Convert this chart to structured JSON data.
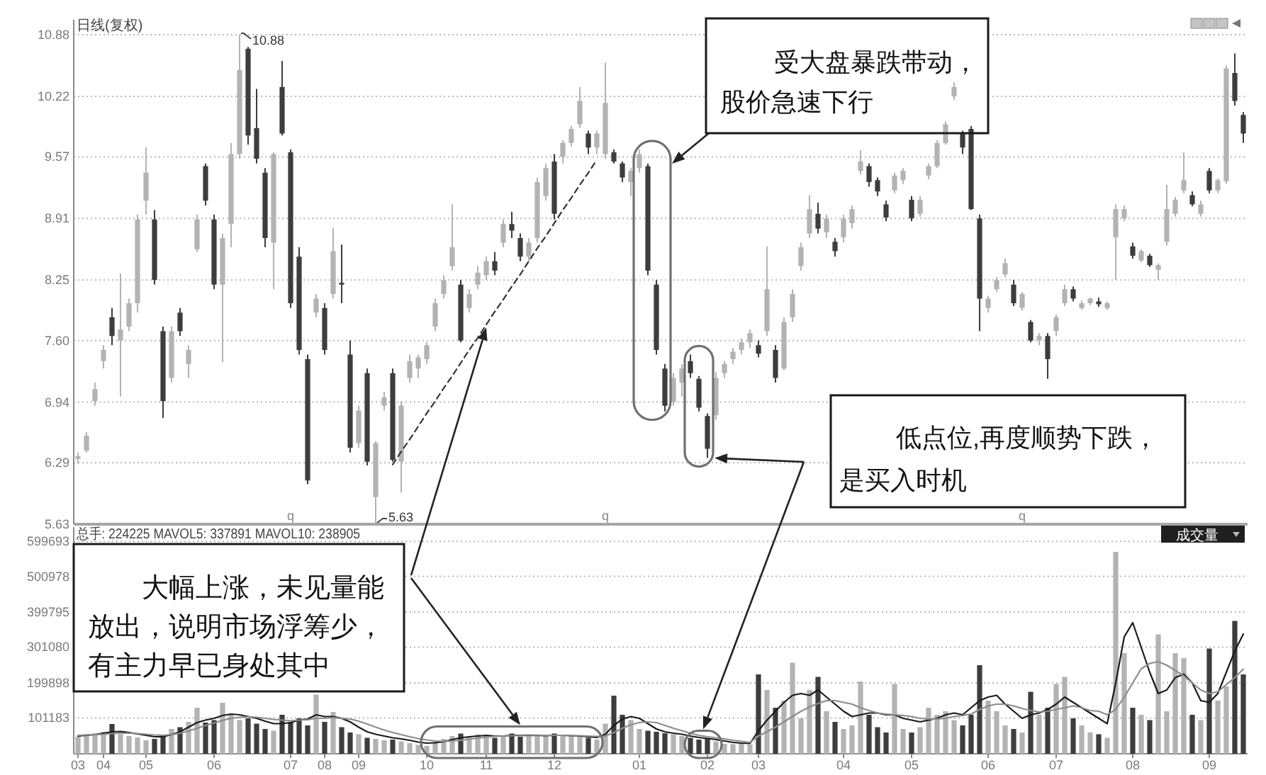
{
  "chart_data": [
    {
      "type": "candlestick",
      "title": "日线(复权)",
      "categories": [
        "03",
        null,
        null,
        "04",
        null,
        null,
        null,
        null,
        "05",
        null,
        null,
        null,
        null,
        null,
        null,
        null,
        "06",
        null,
        null,
        null,
        null,
        null,
        null,
        null,
        null,
        "07",
        null,
        null,
        null,
        "08",
        null,
        null,
        null,
        "09",
        null,
        null,
        null,
        null,
        null,
        null,
        null,
        "10",
        null,
        null,
        null,
        null,
        null,
        null,
        "11",
        null,
        null,
        null,
        null,
        null,
        null,
        null,
        "12",
        null,
        null,
        null,
        null,
        null,
        null,
        null,
        null,
        null,
        "01",
        null,
        null,
        null,
        null,
        null,
        null,
        null,
        "02",
        null,
        null,
        null,
        null,
        null,
        "03",
        null,
        null,
        null,
        null,
        null,
        null,
        null,
        null,
        null,
        "04",
        null,
        null,
        null,
        null,
        null,
        null,
        null,
        "05",
        null,
        null,
        null,
        null,
        null,
        null,
        null,
        null,
        "06",
        null,
        null,
        null,
        null,
        null,
        null,
        null,
        "07",
        null,
        null,
        null,
        null,
        null,
        null,
        null,
        null,
        "08",
        null,
        null,
        null,
        null,
        null,
        null,
        null,
        null,
        "09",
        null,
        null,
        null,
        null
      ],
      "ohlc": [
        [
          6.33,
          6.4,
          6.28,
          6.36
        ],
        [
          6.42,
          6.62,
          6.4,
          6.58
        ],
        [
          6.95,
          7.15,
          6.9,
          7.08
        ],
        [
          7.38,
          7.55,
          7.3,
          7.5
        ],
        [
          7.85,
          7.95,
          7.55,
          7.65
        ],
        [
          7.6,
          8.32,
          7.0,
          7.72
        ],
        [
          7.75,
          8.05,
          7.7,
          8.0
        ],
        [
          8.0,
          8.95,
          7.9,
          8.9
        ],
        [
          9.1,
          9.67,
          8.95,
          9.4
        ],
        [
          8.9,
          9.0,
          8.2,
          8.25
        ],
        [
          7.7,
          7.75,
          6.77,
          6.95
        ],
        [
          7.2,
          7.75,
          7.15,
          7.7
        ],
        [
          7.9,
          7.95,
          7.65,
          7.7
        ],
        [
          7.35,
          7.55,
          7.2,
          7.5
        ],
        [
          8.58,
          8.95,
          8.55,
          8.9
        ],
        [
          9.47,
          9.5,
          9.05,
          9.1
        ],
        [
          8.9,
          8.95,
          8.15,
          8.2
        ],
        [
          8.2,
          8.75,
          7.37,
          8.7
        ],
        [
          8.85,
          9.72,
          8.6,
          9.6
        ],
        [
          9.6,
          10.88,
          9.55,
          10.5
        ],
        [
          10.73,
          10.75,
          9.7,
          9.8
        ],
        [
          9.88,
          10.3,
          9.5,
          9.55
        ],
        [
          9.4,
          9.45,
          8.6,
          8.7
        ],
        [
          8.65,
          9.62,
          8.15,
          9.6
        ],
        [
          10.32,
          10.6,
          9.8,
          9.82
        ],
        [
          9.62,
          9.65,
          7.95,
          8.0
        ],
        [
          8.5,
          8.6,
          7.45,
          7.5
        ],
        [
          7.4,
          7.45,
          6.06,
          6.1
        ],
        [
          7.9,
          8.1,
          7.85,
          8.05
        ],
        [
          7.95,
          8.0,
          7.45,
          7.5
        ],
        [
          8.1,
          8.81,
          8.05,
          8.56
        ],
        [
          8.22,
          8.63,
          8.0,
          8.2
        ],
        [
          7.45,
          7.6,
          6.4,
          6.45
        ],
        [
          6.5,
          6.9,
          6.45,
          6.85
        ],
        [
          7.25,
          7.3,
          6.26,
          6.3
        ],
        [
          5.92,
          6.52,
          5.63,
          6.5
        ],
        [
          6.9,
          7.05,
          6.85,
          6.99
        ],
        [
          7.25,
          7.3,
          6.3,
          6.32
        ],
        [
          6.3,
          6.95,
          5.97,
          6.9
        ],
        [
          7.2,
          7.45,
          7.15,
          7.38
        ],
        [
          7.3,
          7.45,
          7.2,
          7.42
        ],
        [
          7.4,
          7.58,
          7.35,
          7.55
        ],
        [
          7.75,
          8.05,
          7.7,
          8.0
        ],
        [
          8.1,
          8.3,
          8.05,
          8.25
        ],
        [
          8.4,
          9.06,
          8.35,
          8.6
        ],
        [
          8.2,
          8.25,
          7.58,
          7.6
        ],
        [
          7.95,
          8.15,
          7.9,
          8.1
        ],
        [
          8.2,
          8.4,
          8.15,
          8.33
        ],
        [
          8.3,
          8.5,
          8.25,
          8.45
        ],
        [
          8.45,
          8.55,
          8.3,
          8.35
        ],
        [
          8.65,
          8.9,
          8.6,
          8.85
        ],
        [
          8.85,
          8.98,
          8.7,
          8.78
        ],
        [
          8.7,
          8.75,
          8.45,
          8.5
        ],
        [
          8.5,
          8.7,
          8.45,
          8.65
        ],
        [
          8.7,
          9.35,
          8.65,
          9.3
        ],
        [
          9.15,
          9.5,
          9.1,
          9.45
        ],
        [
          9.52,
          9.6,
          8.9,
          8.96
        ],
        [
          9.57,
          9.75,
          9.5,
          9.72
        ],
        [
          9.72,
          9.9,
          9.68,
          9.87
        ],
        [
          9.92,
          10.32,
          9.88,
          10.17
        ],
        [
          9.82,
          9.85,
          9.6,
          9.67
        ],
        [
          9.67,
          9.85,
          9.6,
          9.82
        ],
        [
          9.6,
          10.58,
          9.55,
          10.15
        ],
        [
          9.62,
          9.65,
          9.5,
          9.52
        ],
        [
          9.5,
          9.52,
          9.3,
          9.35
        ],
        [
          9.3,
          9.45,
          9.15,
          9.42
        ],
        [
          9.45,
          9.65,
          9.4,
          9.6
        ],
        [
          9.47,
          9.5,
          8.3,
          8.35
        ],
        [
          8.2,
          8.25,
          7.45,
          7.5
        ],
        [
          7.3,
          7.35,
          6.84,
          6.9
        ],
        [
          6.94,
          7.25,
          6.9,
          7.2
        ],
        [
          7.15,
          7.35,
          7.0,
          7.3
        ],
        [
          7.38,
          7.45,
          7.2,
          7.25
        ],
        [
          7.19,
          7.22,
          6.84,
          6.88
        ],
        [
          6.79,
          6.82,
          6.34,
          6.44
        ],
        [
          6.8,
          7.26,
          6.75,
          7.2
        ],
        [
          7.25,
          7.38,
          7.2,
          7.35
        ],
        [
          7.4,
          7.52,
          7.35,
          7.48
        ],
        [
          7.5,
          7.62,
          7.45,
          7.58
        ],
        [
          7.58,
          7.72,
          7.52,
          7.68
        ],
        [
          7.55,
          7.6,
          7.42,
          7.46
        ],
        [
          7.7,
          8.61,
          7.65,
          8.15
        ],
        [
          7.5,
          7.55,
          7.15,
          7.2
        ],
        [
          7.3,
          7.85,
          7.28,
          7.8
        ],
        [
          7.85,
          8.15,
          7.8,
          8.1
        ],
        [
          8.4,
          8.65,
          8.35,
          8.6
        ],
        [
          8.75,
          9.16,
          8.7,
          9.01
        ],
        [
          8.96,
          9.08,
          8.75,
          8.8
        ],
        [
          8.76,
          8.95,
          8.7,
          8.91
        ],
        [
          8.66,
          8.7,
          8.5,
          8.56
        ],
        [
          8.71,
          8.95,
          8.65,
          8.91
        ],
        [
          8.86,
          9.05,
          8.8,
          9.01
        ],
        [
          9.42,
          9.64,
          9.38,
          9.52
        ],
        [
          9.47,
          9.5,
          9.25,
          9.3
        ],
        [
          9.32,
          9.35,
          9.15,
          9.2
        ],
        [
          9.06,
          9.1,
          8.88,
          8.92
        ],
        [
          9.21,
          9.4,
          9.18,
          9.37
        ],
        [
          9.32,
          9.45,
          9.28,
          9.42
        ],
        [
          9.11,
          9.15,
          8.88,
          8.91
        ],
        [
          8.96,
          9.15,
          8.93,
          9.11
        ],
        [
          9.37,
          9.5,
          9.33,
          9.47
        ],
        [
          9.47,
          9.75,
          9.45,
          9.72
        ],
        [
          9.72,
          9.95,
          9.7,
          9.92
        ],
        [
          10.22,
          10.37,
          10.18,
          10.32
        ],
        [
          9.82,
          9.85,
          9.6,
          9.67
        ],
        [
          9.87,
          9.9,
          9.0,
          9.01
        ],
        [
          8.91,
          8.95,
          7.7,
          8.05
        ],
        [
          7.95,
          8.08,
          7.9,
          8.05
        ],
        [
          8.15,
          8.28,
          8.12,
          8.25
        ],
        [
          8.31,
          8.48,
          8.28,
          8.43
        ],
        [
          8.2,
          8.25,
          7.97,
          8.0
        ],
        [
          7.95,
          8.12,
          7.92,
          8.1
        ],
        [
          7.8,
          7.82,
          7.58,
          7.6
        ],
        [
          7.6,
          7.68,
          7.55,
          7.65
        ],
        [
          7.65,
          7.68,
          7.19,
          7.4
        ],
        [
          7.7,
          7.88,
          7.65,
          7.85
        ],
        [
          8.0,
          8.2,
          7.97,
          8.15
        ],
        [
          8.15,
          8.18,
          8.02,
          8.05
        ],
        [
          7.95,
          8.03,
          7.93,
          8.0
        ],
        [
          8.0,
          8.06,
          7.98,
          8.05
        ],
        [
          8.02,
          8.06,
          7.96,
          7.99
        ],
        [
          7.95,
          8.02,
          7.93,
          8.0
        ],
        [
          8.71,
          9.06,
          8.25,
          9.01
        ],
        [
          8.91,
          9.05,
          8.88,
          9.01
        ],
        [
          8.61,
          8.65,
          8.48,
          8.51
        ],
        [
          8.46,
          8.58,
          8.44,
          8.56
        ],
        [
          8.51,
          8.53,
          8.39,
          8.41
        ],
        [
          8.36,
          8.43,
          8.25,
          8.41
        ],
        [
          8.66,
          9.27,
          8.62,
          9.01
        ],
        [
          8.96,
          9.14,
          8.93,
          9.11
        ],
        [
          9.21,
          9.62,
          9.18,
          9.32
        ],
        [
          9.16,
          9.2,
          9.04,
          9.06
        ],
        [
          8.96,
          9.1,
          8.93,
          9.06
        ],
        [
          9.42,
          9.45,
          9.18,
          9.21
        ],
        [
          9.21,
          9.34,
          9.18,
          9.32
        ],
        [
          9.31,
          10.55,
          9.28,
          10.52
        ],
        [
          10.47,
          10.68,
          10.12,
          10.17
        ],
        [
          10.02,
          10.05,
          9.72,
          9.82
        ]
      ],
      "colors": [
        "#b3b3b3",
        "#b3b3b3",
        "#b3b3b3",
        "#b3b3b3",
        "#3d3d3d",
        "#b3b3b3",
        "#b3b3b3",
        "#b3b3b3",
        "#b3b3b3",
        "#3d3d3d",
        "#3d3d3d",
        "#b3b3b3",
        "#3d3d3d",
        "#b3b3b3",
        "#b3b3b3",
        "#3d3d3d",
        "#3d3d3d",
        "#b3b3b3",
        "#b3b3b3",
        "#b3b3b3",
        "#3d3d3d",
        "#3d3d3d",
        "#3d3d3d",
        "#b3b3b3",
        "#3d3d3d",
        "#3d3d3d",
        "#3d3d3d",
        "#3d3d3d",
        "#b3b3b3",
        "#3d3d3d",
        "#b3b3b3",
        "#3d3d3d",
        "#3d3d3d",
        "#b3b3b3",
        "#3d3d3d",
        "#b3b3b3",
        "#b3b3b3",
        "#3d3d3d",
        "#b3b3b3",
        "#b3b3b3",
        "#b3b3b3",
        "#b3b3b3",
        "#b3b3b3",
        "#b3b3b3",
        "#b3b3b3",
        "#3d3d3d",
        "#b3b3b3",
        "#b3b3b3",
        "#b3b3b3",
        "#3d3d3d",
        "#b3b3b3",
        "#3d3d3d",
        "#3d3d3d",
        "#b3b3b3",
        "#b3b3b3",
        "#b3b3b3",
        "#3d3d3d",
        "#b3b3b3",
        "#b3b3b3",
        "#b3b3b3",
        "#3d3d3d",
        "#b3b3b3",
        "#b3b3b3",
        "#3d3d3d",
        "#3d3d3d",
        "#b3b3b3",
        "#b3b3b3",
        "#3d3d3d",
        "#3d3d3d",
        "#3d3d3d",
        "#b3b3b3",
        "#b3b3b3",
        "#3d3d3d",
        "#3d3d3d",
        "#3d3d3d",
        "#b3b3b3",
        "#b3b3b3",
        "#b3b3b3",
        "#b3b3b3",
        "#b3b3b3",
        "#3d3d3d",
        "#b3b3b3",
        "#3d3d3d",
        "#b3b3b3",
        "#b3b3b3",
        "#b3b3b3",
        "#b3b3b3",
        "#3d3d3d",
        "#b3b3b3",
        "#3d3d3d",
        "#b3b3b3",
        "#b3b3b3",
        "#b3b3b3",
        "#3d3d3d",
        "#3d3d3d",
        "#3d3d3d",
        "#b3b3b3",
        "#b3b3b3",
        "#3d3d3d",
        "#b3b3b3",
        "#b3b3b3",
        "#b3b3b3",
        "#b3b3b3",
        "#b3b3b3",
        "#3d3d3d",
        "#3d3d3d",
        "#3d3d3d",
        "#b3b3b3",
        "#b3b3b3",
        "#b3b3b3",
        "#3d3d3d",
        "#b3b3b3",
        "#3d3d3d",
        "#b3b3b3",
        "#3d3d3d",
        "#b3b3b3",
        "#b3b3b3",
        "#3d3d3d",
        "#b3b3b3",
        "#b3b3b3",
        "#3d3d3d",
        "#b3b3b3",
        "#b3b3b3",
        "#b3b3b3",
        "#3d3d3d",
        "#b3b3b3",
        "#3d3d3d",
        "#b3b3b3",
        "#b3b3b3",
        "#b3b3b3",
        "#b3b3b3",
        "#3d3d3d",
        "#b3b3b3",
        "#3d3d3d",
        "#b3b3b3",
        "#b3b3b3",
        "#3d3d3d",
        "#3d3d3d"
      ],
      "series": [
        {
          "type": "line",
          "line_style": "dashed",
          "color": "#333333",
          "values": [
            null,
            null,
            null,
            null,
            null,
            null,
            null,
            null,
            null,
            null,
            null,
            null,
            null,
            null,
            null,
            null,
            null,
            null,
            null,
            null,
            null,
            null,
            null,
            null,
            null,
            null,
            null,
            null,
            null,
            null,
            null,
            null,
            null,
            null,
            null,
            null,
            null,
            6.27,
            6.41,
            6.54,
            6.68,
            6.82,
            6.95,
            7.09,
            7.22,
            7.36,
            7.5,
            7.63,
            7.77,
            7.91,
            8.04,
            8.18,
            8.31,
            8.45,
            8.59,
            8.72,
            8.86,
            9.0,
            9.13,
            9.27,
            9.4,
            9.54,
            null,
            null,
            null,
            null,
            null,
            null,
            null,
            null,
            null,
            null,
            null,
            null,
            null,
            null,
            null,
            null,
            null,
            null,
            null,
            null,
            null,
            null,
            null,
            null,
            null,
            null,
            null,
            null,
            null,
            null,
            null,
            null,
            null,
            null,
            null,
            null,
            null,
            null,
            null,
            null,
            null,
            null,
            null,
            null,
            null,
            null,
            null,
            null,
            null,
            null,
            null,
            null,
            null,
            null,
            null,
            null,
            null,
            null,
            null,
            null,
            null,
            null,
            null,
            null,
            null,
            null,
            null,
            null,
            null,
            null,
            null,
            null,
            null,
            null,
            null,
            null
          ]
        }
      ],
      "ylim": [
        5.63,
        11.04
      ],
      "yticks": [
        5.63,
        6.29,
        6.94,
        {
          "value": 7.6,
          "label": "7.60"
        },
        8.25,
        8.91,
        9.57,
        10.22,
        10.88
      ],
      "grid": "y",
      "tick_labels": "y",
      "annotations": [
        "10.88",
        "5.63",
        "q",
        "q",
        "q",
        "受大盘暴跌带动，股价急速下行",
        "低点位,再度顺势下跌，是买入时机"
      ]
    },
    {
      "type": "bar",
      "title": "总手: 224225 MAVOL5: 337891 MAVOL10: 238905",
      "categories": [
        "03",
        null,
        null,
        "04",
        null,
        null,
        null,
        null,
        "05",
        null,
        null,
        null,
        null,
        null,
        null,
        null,
        "06",
        null,
        null,
        null,
        null,
        null,
        null,
        null,
        null,
        "07",
        null,
        null,
        null,
        "08",
        null,
        null,
        null,
        "09",
        null,
        null,
        null,
        null,
        null,
        null,
        null,
        "10",
        null,
        null,
        null,
        null,
        null,
        null,
        "11",
        null,
        null,
        null,
        null,
        null,
        null,
        null,
        "12",
        null,
        null,
        null,
        null,
        null,
        null,
        null,
        null,
        null,
        "01",
        null,
        null,
        null,
        null,
        null,
        null,
        null,
        "02",
        null,
        null,
        null,
        null,
        null,
        "03",
        null,
        null,
        null,
        null,
        null,
        null,
        null,
        null,
        null,
        "04",
        null,
        null,
        null,
        null,
        null,
        null,
        null,
        "05",
        null,
        null,
        null,
        null,
        null,
        null,
        null,
        null,
        "06",
        null,
        null,
        null,
        null,
        null,
        null,
        null,
        "07",
        null,
        null,
        null,
        null,
        null,
        null,
        null,
        null,
        "08",
        null,
        null,
        null,
        null,
        null,
        null,
        null,
        null,
        "09",
        null,
        null,
        null,
        null
      ],
      "series": [
        {
          "values": [
            48000,
            55000,
            58000,
            62000,
            84000,
            55000,
            50000,
            46000,
            38000,
            42000,
            52000,
            70000,
            75000,
            90000,
            130000,
            88000,
            95000,
            144000,
            110000,
            95000,
            100000,
            85000,
            70000,
            65000,
            110000,
            90000,
            100000,
            80000,
            167000,
            90000,
            118000,
            75000,
            60000,
            55000,
            45000,
            42000,
            38000,
            40000,
            35000,
            30000,
            25000,
            22000,
            35000,
            42000,
            50000,
            57000,
            48000,
            55000,
            50000,
            45000,
            52000,
            57000,
            48000,
            55000,
            50000,
            52000,
            57000,
            50000,
            52000,
            48000,
            45000,
            40000,
            85000,
            164000,
            110000,
            95000,
            70000,
            65000,
            62000,
            58000,
            55000,
            50000,
            45000,
            40000,
            42000,
            35000,
            28000,
            27000,
            30000,
            26000,
            224000,
            180000,
            130000,
            150000,
            257000,
            100000,
            180000,
            217000,
            120000,
            90000,
            70000,
            80000,
            204000,
            110000,
            75000,
            60000,
            197000,
            70000,
            60000,
            75000,
            130000,
            110000,
            120000,
            95000,
            80000,
            110000,
            250000,
            150000,
            120000,
            80000,
            70000,
            60000,
            175000,
            110000,
            130000,
            197000,
            217000,
            100000,
            80000,
            60000,
            55000,
            45000,
            570000,
            284000,
            130000,
            110000,
            95000,
            337000,
            120000,
            284000,
            270000,
            110000,
            95000,
            297000,
            150000,
            190000,
            375000,
            224000
          ],
          "colors": [
            "#b3b3b3",
            "#b3b3b3",
            "#b3b3b3",
            "#b3b3b3",
            "#3d3d3d",
            "#b3b3b3",
            "#b3b3b3",
            "#b3b3b3",
            "#b3b3b3",
            "#3d3d3d",
            "#3d3d3d",
            "#b3b3b3",
            "#3d3d3d",
            "#b3b3b3",
            "#b3b3b3",
            "#3d3d3d",
            "#3d3d3d",
            "#b3b3b3",
            "#b3b3b3",
            "#b3b3b3",
            "#3d3d3d",
            "#3d3d3d",
            "#3d3d3d",
            "#b3b3b3",
            "#3d3d3d",
            "#3d3d3d",
            "#3d3d3d",
            "#3d3d3d",
            "#b3b3b3",
            "#3d3d3d",
            "#b3b3b3",
            "#3d3d3d",
            "#3d3d3d",
            "#b3b3b3",
            "#3d3d3d",
            "#b3b3b3",
            "#b3b3b3",
            "#3d3d3d",
            "#b3b3b3",
            "#b3b3b3",
            "#b3b3b3",
            "#b3b3b3",
            "#b3b3b3",
            "#b3b3b3",
            "#b3b3b3",
            "#3d3d3d",
            "#b3b3b3",
            "#b3b3b3",
            "#b3b3b3",
            "#3d3d3d",
            "#b3b3b3",
            "#3d3d3d",
            "#3d3d3d",
            "#b3b3b3",
            "#b3b3b3",
            "#b3b3b3",
            "#3d3d3d",
            "#b3b3b3",
            "#b3b3b3",
            "#b3b3b3",
            "#3d3d3d",
            "#b3b3b3",
            "#b3b3b3",
            "#3d3d3d",
            "#3d3d3d",
            "#b3b3b3",
            "#b3b3b3",
            "#3d3d3d",
            "#3d3d3d",
            "#3d3d3d",
            "#b3b3b3",
            "#b3b3b3",
            "#3d3d3d",
            "#3d3d3d",
            "#3d3d3d",
            "#b3b3b3",
            "#b3b3b3",
            "#b3b3b3",
            "#b3b3b3",
            "#b3b3b3",
            "#3d3d3d",
            "#b3b3b3",
            "#3d3d3d",
            "#b3b3b3",
            "#b3b3b3",
            "#b3b3b3",
            "#b3b3b3",
            "#3d3d3d",
            "#b3b3b3",
            "#3d3d3d",
            "#b3b3b3",
            "#b3b3b3",
            "#b3b3b3",
            "#3d3d3d",
            "#3d3d3d",
            "#3d3d3d",
            "#b3b3b3",
            "#b3b3b3",
            "#3d3d3d",
            "#b3b3b3",
            "#b3b3b3",
            "#b3b3b3",
            "#b3b3b3",
            "#b3b3b3",
            "#3d3d3d",
            "#3d3d3d",
            "#3d3d3d",
            "#b3b3b3",
            "#b3b3b3",
            "#b3b3b3",
            "#3d3d3d",
            "#b3b3b3",
            "#3d3d3d",
            "#b3b3b3",
            "#3d3d3d",
            "#b3b3b3",
            "#b3b3b3",
            "#3d3d3d",
            "#b3b3b3",
            "#b3b3b3",
            "#3d3d3d",
            "#b3b3b3",
            "#b3b3b3",
            "#b3b3b3",
            "#3d3d3d",
            "#b3b3b3",
            "#3d3d3d",
            "#b3b3b3",
            "#b3b3b3",
            "#b3b3b3",
            "#b3b3b3",
            "#3d3d3d",
            "#b3b3b3",
            "#3d3d3d",
            "#b3b3b3",
            "#b3b3b3",
            "#3d3d3d",
            "#3d3d3d"
          ]
        },
        {
          "type": "line",
          "color": "#1a1a1a",
          "values": [
            50000,
            52000,
            54000,
            58000,
            62000,
            63000,
            60000,
            56000,
            52000,
            48000,
            48000,
            54000,
            62000,
            75000,
            88000,
            95000,
            100000,
            108000,
            112000,
            110000,
            105000,
            100000,
            92000,
            85000,
            85000,
            88000,
            95000,
            98000,
            110000,
            105000,
            105000,
            100000,
            90000,
            75000,
            62000,
            55000,
            50000,
            45000,
            42000,
            38000,
            33000,
            30000,
            31000,
            34000,
            40000,
            45000,
            48000,
            50000,
            52000,
            50000,
            50000,
            52000,
            52000,
            52000,
            52000,
            51000,
            52000,
            52000,
            51000,
            50000,
            48000,
            46000,
            55000,
            80000,
            98000,
            105000,
            100000,
            85000,
            70000,
            62000,
            58000,
            55000,
            50000,
            46000,
            43000,
            40000,
            36000,
            32000,
            30000,
            29000,
            65000,
            95000,
            120000,
            145000,
            165000,
            170000,
            165000,
            180000,
            160000,
            140000,
            120000,
            105000,
            110000,
            115000,
            115000,
            110000,
            110000,
            100000,
            95000,
            90000,
            95000,
            100000,
            110000,
            115000,
            110000,
            130000,
            150000,
            160000,
            165000,
            140000,
            120000,
            100000,
            110000,
            115000,
            125000,
            140000,
            160000,
            145000,
            130000,
            115000,
            100000,
            85000,
            200000,
            330000,
            370000,
            300000,
            230000,
            170000,
            180000,
            215000,
            225000,
            200000,
            150000,
            145000,
            170000,
            230000,
            290000,
            338000
          ]
        },
        {
          "type": "line",
          "color": "#8c8c8c",
          "values": [
            52000,
            53000,
            54000,
            55000,
            57000,
            58000,
            58000,
            57000,
            55000,
            53000,
            52000,
            54000,
            58000,
            64000,
            72000,
            80000,
            87000,
            94000,
            100000,
            103000,
            104000,
            103000,
            100000,
            97000,
            95000,
            93000,
            95000,
            96000,
            100000,
            100000,
            102000,
            100000,
            98000,
            92000,
            84000,
            75000,
            67000,
            60000,
            54000,
            48000,
            43000,
            39000,
            36000,
            35000,
            36000,
            38000,
            41000,
            44000,
            47000,
            49000,
            50000,
            51000,
            51000,
            51000,
            51000,
            52000,
            52000,
            52000,
            51000,
            51000,
            50000,
            49000,
            50000,
            60000,
            72000,
            82000,
            88000,
            90000,
            88000,
            80000,
            72000,
            65000,
            58000,
            52000,
            48000,
            45000,
            42000,
            38000,
            35000,
            32000,
            50000,
            62000,
            75000,
            90000,
            105000,
            120000,
            132000,
            142000,
            150000,
            150000,
            145000,
            140000,
            130000,
            122000,
            115000,
            112000,
            110000,
            108000,
            105000,
            100000,
            98000,
            98000,
            100000,
            105000,
            108000,
            112000,
            125000,
            135000,
            140000,
            140000,
            135000,
            128000,
            122000,
            118000,
            120000,
            125000,
            130000,
            135000,
            130000,
            122000,
            120000,
            110000,
            125000,
            160000,
            200000,
            240000,
            255000,
            260000,
            250000,
            235000,
            220000,
            200000,
            180000,
            170000,
            175000,
            195000,
            215000,
            239000
          ]
        }
      ],
      "ylim": [
        0,
        640000
      ],
      "yticks": [
        101183,
        199898,
        301080,
        399795,
        500978,
        599693
      ],
      "grid": "y",
      "annotations": [
        "大幅上涨，未见量能放出，说明市场浮筹少，有主力早已身处其中",
        "成交量"
      ]
    }
  ]
}
